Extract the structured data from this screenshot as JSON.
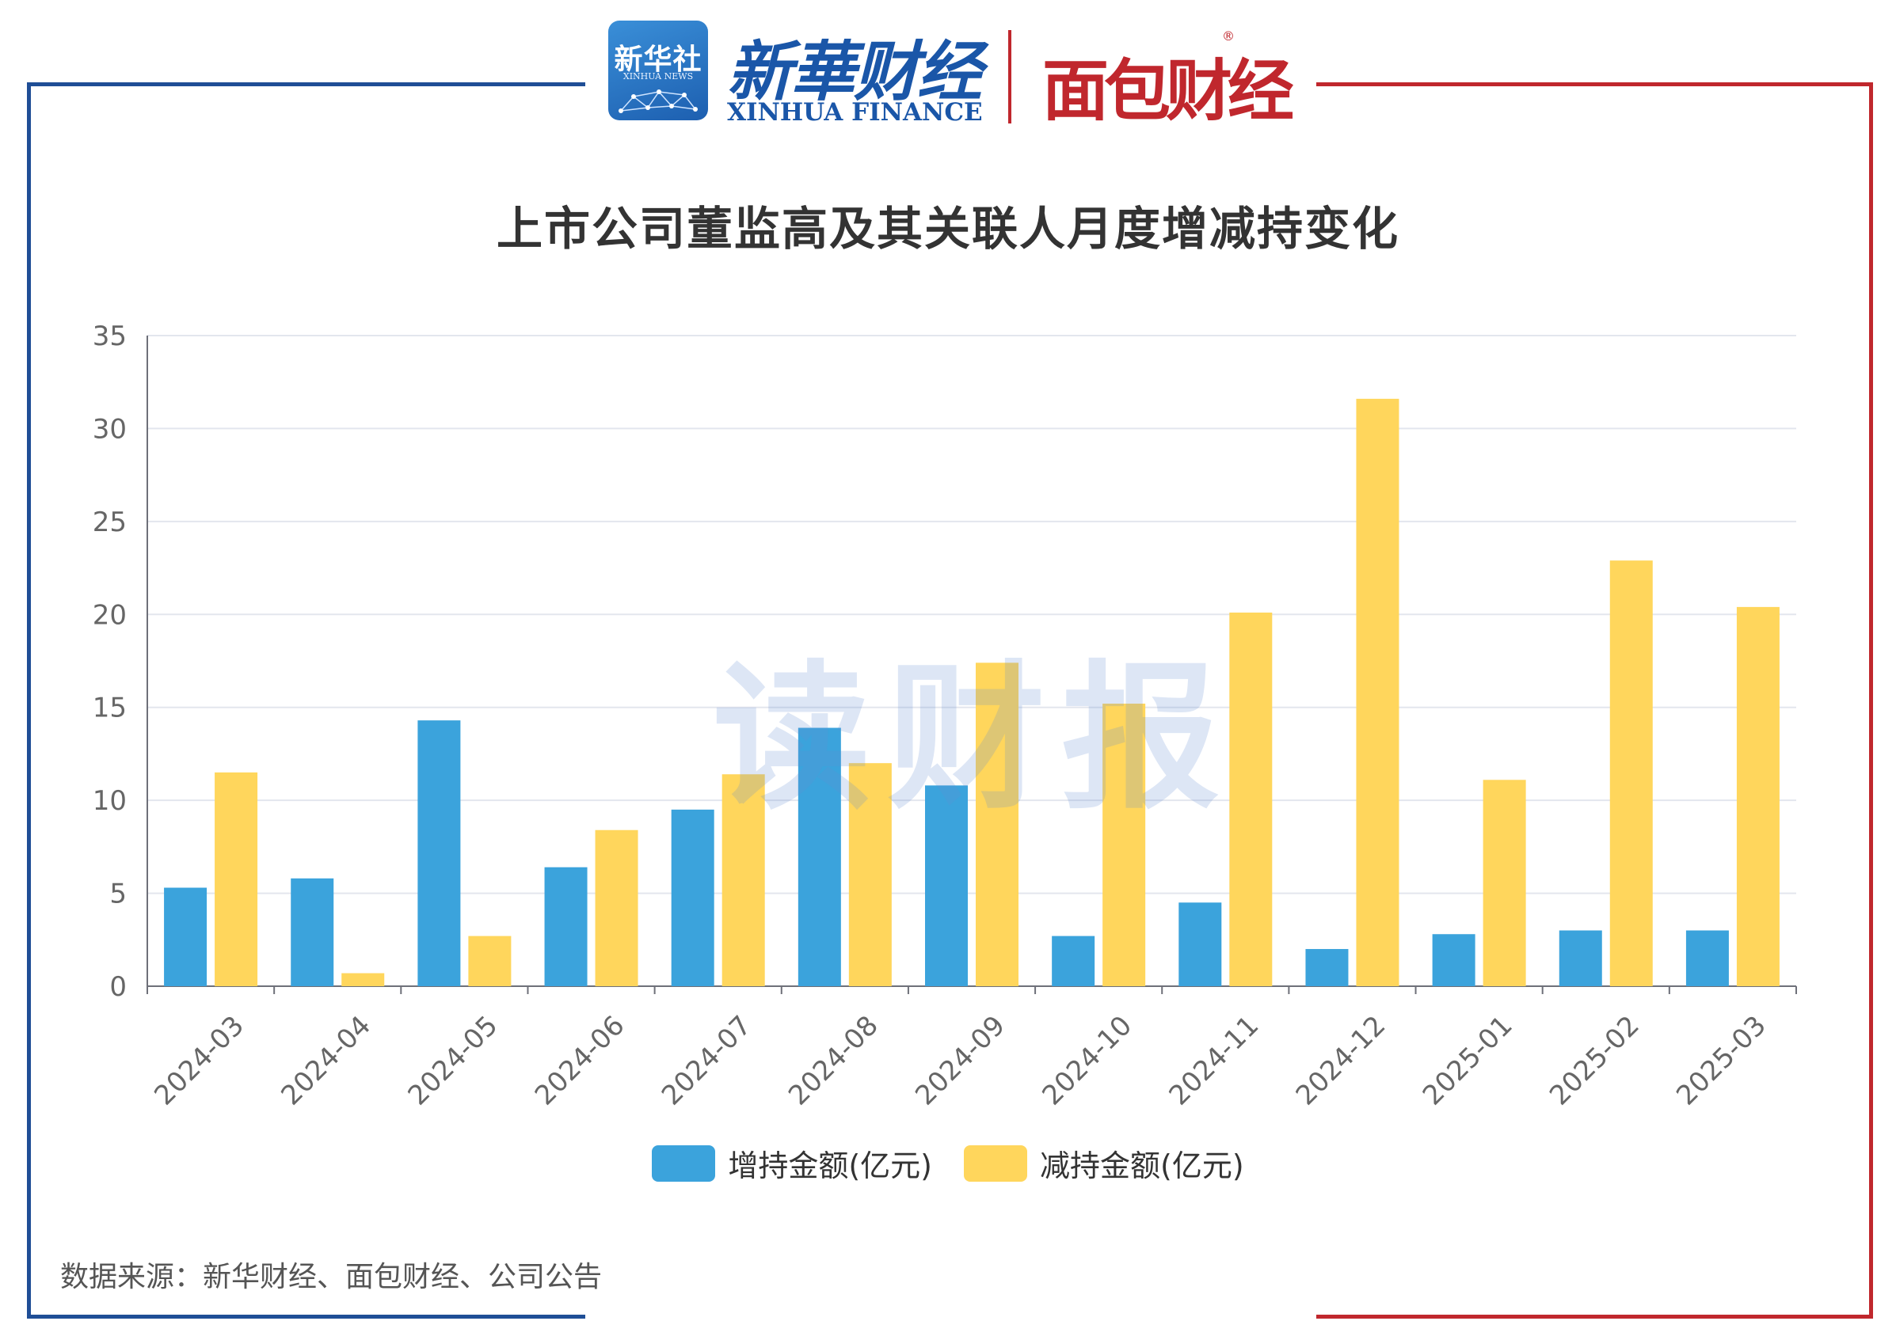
{
  "header": {
    "xinhua_badge": "新华社",
    "xinhua_badge_sub": "XINHUA NEWS",
    "xinhua_finance_cn": "新華财经",
    "xinhua_finance_en": "XINHUA FINANCE",
    "mianbao": "面包财经",
    "registered": "®"
  },
  "watermark": "读财报",
  "source": "数据来源：新华财经、面包财经、公司公告",
  "colors": {
    "increase": "#3ba3dc",
    "decrease": "#ffd65c",
    "frame_left": "#1f4e96",
    "frame_right": "#c0272d"
  },
  "chart_data": {
    "type": "bar",
    "title": "上市公司董监高及其关联人月度增减持变化",
    "xlabel": "",
    "ylabel": "",
    "ylim": [
      0,
      35
    ],
    "yticks": [
      0,
      5,
      10,
      15,
      20,
      25,
      30,
      35
    ],
    "categories": [
      "2024-03",
      "2024-04",
      "2024-05",
      "2024-06",
      "2024-07",
      "2024-08",
      "2024-09",
      "2024-10",
      "2024-11",
      "2024-12",
      "2025-01",
      "2025-02",
      "2025-03"
    ],
    "series": [
      {
        "name": "增持金额(亿元)",
        "values": [
          5.3,
          5.8,
          14.3,
          6.4,
          9.5,
          13.9,
          10.8,
          2.7,
          4.5,
          2.0,
          2.8,
          3.0,
          3.0
        ]
      },
      {
        "name": "减持金额(亿元)",
        "values": [
          11.5,
          0.7,
          2.7,
          8.4,
          11.4,
          12.0,
          17.4,
          15.2,
          20.1,
          31.6,
          11.1,
          22.9,
          20.4
        ]
      }
    ],
    "grid": true,
    "legend": "bottom"
  }
}
